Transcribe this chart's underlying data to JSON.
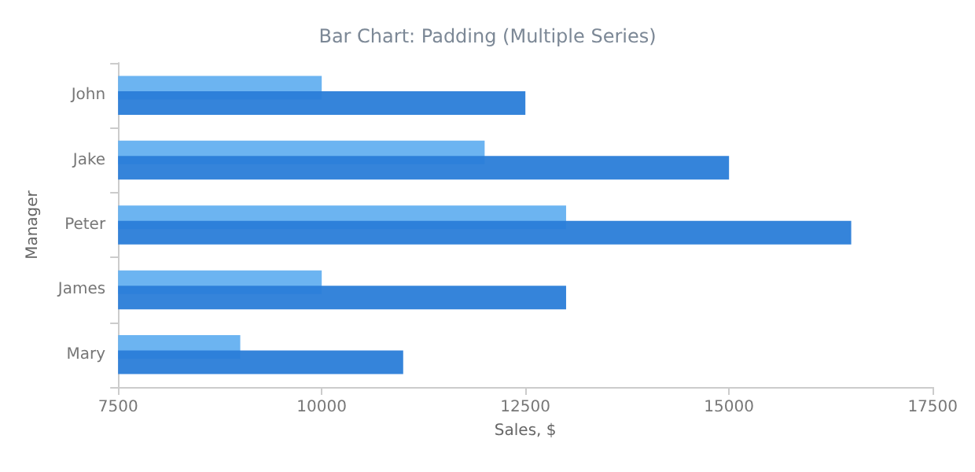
{
  "chart_data": {
    "type": "bar",
    "orientation": "horizontal",
    "title": "Bar Chart: Padding (Multiple Series)",
    "xlabel": "Sales, $",
    "ylabel": "Manager",
    "categories": [
      "John",
      "Jake",
      "Peter",
      "James",
      "Mary"
    ],
    "series": [
      {
        "color": "#64b0f0",
        "values": [
          10000,
          12000,
          13000,
          10000,
          9000
        ]
      },
      {
        "color": "#2a7dd8",
        "values": [
          12500,
          15000,
          16500,
          13000,
          11000
        ]
      }
    ],
    "xlim": [
      7500,
      17500
    ],
    "xticks": [
      {
        "value": 7500,
        "label": "7500"
      },
      {
        "value": 10000,
        "label": "10000"
      },
      {
        "value": 12500,
        "label": "12500"
      },
      {
        "value": 15000,
        "label": "15000"
      },
      {
        "value": 17500,
        "label": "17500"
      }
    ]
  }
}
